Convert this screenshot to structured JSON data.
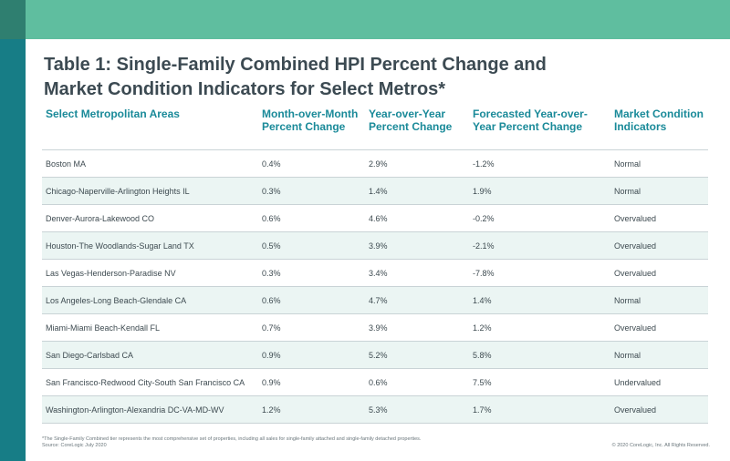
{
  "colors": {
    "band": "#5fbe9f",
    "sidebar": "#177d86",
    "header_text": "#1a8a99",
    "row_alt": "#ebf5f3"
  },
  "title": {
    "line1": "Table 1: Single-Family Combined HPI Percent Change and",
    "line2": "Market Condition Indicators for Select Metros*"
  },
  "table": {
    "headers": [
      "Select Metropolitan Areas",
      "Month-over-Month Percent Change",
      "Year-over-Year Percent Change",
      "Forecasted Year-over-Year Percent Change",
      "Market Condition Indicators"
    ],
    "rows": [
      [
        "Boston MA",
        "0.4%",
        "2.9%",
        "-1.2%",
        "Normal"
      ],
      [
        "Chicago-Naperville-Arlington Heights IL",
        "0.3%",
        "1.4%",
        "1.9%",
        "Normal"
      ],
      [
        "Denver-Aurora-Lakewood CO",
        "0.6%",
        "4.6%",
        "-0.2%",
        "Overvalued"
      ],
      [
        "Houston-The Woodlands-Sugar Land TX",
        "0.5%",
        "3.9%",
        "-2.1%",
        "Overvalued"
      ],
      [
        "Las Vegas-Henderson-Paradise NV",
        "0.3%",
        "3.4%",
        "-7.8%",
        "Overvalued"
      ],
      [
        "Los Angeles-Long Beach-Glendale CA",
        "0.6%",
        "4.7%",
        "1.4%",
        "Normal"
      ],
      [
        "Miami-Miami Beach-Kendall FL",
        "0.7%",
        "3.9%",
        "1.2%",
        "Overvalued"
      ],
      [
        "San Diego-Carlsbad CA",
        "0.9%",
        "5.2%",
        "5.8%",
        "Normal"
      ],
      [
        "San Francisco-Redwood City-South San Francisco CA",
        "0.9%",
        "0.6%",
        "7.5%",
        "Undervalued"
      ],
      [
        "Washington-Arlington-Alexandria DC-VA-MD-WV",
        "1.2%",
        "5.3%",
        "1.7%",
        "Overvalued"
      ]
    ]
  },
  "footnote": {
    "note": "*The Single-Family Combined tier represents the most comprehensive set of properties, including all sales for single-family attached and single-family detached properties.",
    "source": "Source: CoreLogic July 2020"
  },
  "copyright": "© 2020 CoreLogic, Inc. All Rights Reserved."
}
